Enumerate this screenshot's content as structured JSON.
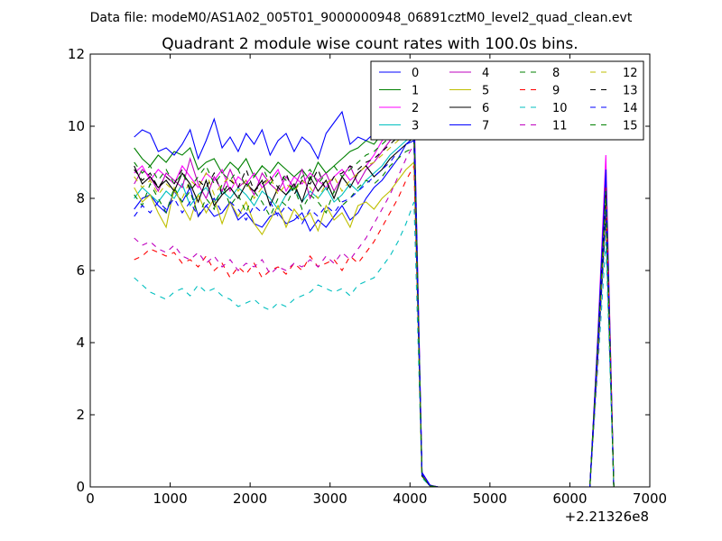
{
  "suptitle": "Data file: modeM0/AS1A02_005T01_9000000948_06891cztM0_level2_quad_clean.evt",
  "chart_data": {
    "type": "line",
    "title": "Quadrant 2 module wise count rates with 100.0s bins.",
    "xlabel": "",
    "ylabel": "",
    "xlim": [
      0,
      7000
    ],
    "ylim": [
      0,
      12
    ],
    "x_offset_label": "+2.21326e8",
    "x_ticks": [
      "0",
      "1000",
      "2000",
      "3000",
      "4000",
      "5000",
      "6000",
      "7000"
    ],
    "y_ticks": [
      "0",
      "2",
      "4",
      "6",
      "8",
      "10",
      "12"
    ],
    "grid": false,
    "legend_position": "top-right",
    "legend_columns": 4,
    "x": [
      550,
      650,
      750,
      850,
      950,
      1050,
      1150,
      1250,
      1350,
      1450,
      1550,
      1650,
      1750,
      1850,
      1950,
      2050,
      2150,
      2250,
      2350,
      2450,
      2550,
      2650,
      2750,
      2850,
      2950,
      3050,
      3150,
      3250,
      3350,
      3450,
      3550,
      3650,
      3750,
      3850,
      3950,
      4050,
      4150,
      4250,
      4350,
      4450,
      4550,
      4650,
      4750,
      4850,
      4950,
      5050,
      5150,
      5250,
      5350,
      5450,
      5550,
      5650,
      5750,
      5850,
      5950,
      6050,
      6150,
      6250,
      6350,
      6450,
      6550
    ],
    "series": [
      {
        "name": "0",
        "color": "#0000ff",
        "dash": "solid",
        "values": [
          7.7,
          8.0,
          8.1,
          7.8,
          7.6,
          8.2,
          7.9,
          8.3,
          7.5,
          7.8,
          7.5,
          7.6,
          7.9,
          7.4,
          7.6,
          7.3,
          7.2,
          7.5,
          7.6,
          7.3,
          7.4,
          7.6,
          7.1,
          7.4,
          7.2,
          7.5,
          7.8,
          7.4,
          7.6,
          8.0,
          8.3,
          8.5,
          8.8,
          9.1,
          9.5,
          9.6,
          0.4,
          0.05,
          0,
          0,
          0,
          0,
          0,
          0,
          0,
          0,
          0,
          0,
          0,
          0,
          0,
          0,
          0,
          0,
          0,
          0,
          0,
          0,
          3.8,
          8.4,
          0
        ]
      },
      {
        "name": "1",
        "color": "#008000",
        "dash": "solid",
        "values": [
          9.4,
          9.1,
          8.9,
          9.2,
          9.0,
          9.3,
          9.2,
          9.4,
          8.8,
          9.0,
          9.1,
          8.7,
          9.0,
          8.8,
          9.1,
          8.6,
          8.9,
          8.7,
          9.0,
          8.8,
          8.6,
          8.8,
          8.5,
          9.0,
          8.7,
          8.9,
          9.1,
          9.3,
          9.4,
          9.6,
          9.5,
          9.8,
          9.7,
          9.9,
          10.0,
          10.1,
          0.3,
          0.03,
          0,
          0,
          0,
          0,
          0,
          0,
          0,
          0,
          0,
          0,
          0,
          0,
          0,
          0,
          0,
          0,
          0,
          0,
          0,
          0,
          4.0,
          9.0,
          0
        ]
      },
      {
        "name": "2",
        "color": "#ff00ff",
        "dash": "solid",
        "values": [
          8.7,
          8.9,
          8.5,
          8.8,
          8.6,
          8.4,
          8.9,
          8.6,
          8.3,
          8.7,
          8.5,
          8.8,
          8.2,
          8.6,
          8.4,
          8.7,
          8.3,
          8.5,
          8.8,
          8.2,
          8.6,
          8.4,
          8.7,
          8.5,
          8.3,
          8.6,
          8.8,
          8.5,
          8.7,
          8.9,
          9.2,
          9.6,
          9.9,
          10.2,
          10.5,
          10.7,
          0.4,
          0.05,
          0,
          0,
          0,
          0,
          0,
          0,
          0,
          0,
          0,
          0,
          0,
          0,
          0,
          0,
          0,
          0,
          0,
          0,
          0,
          0,
          4.2,
          9.2,
          0
        ]
      },
      {
        "name": "3",
        "color": "#00bfbf",
        "dash": "solid",
        "values": [
          8.0,
          8.3,
          8.1,
          7.9,
          8.2,
          8.0,
          8.4,
          7.8,
          8.1,
          8.3,
          7.9,
          8.2,
          8.0,
          8.3,
          8.1,
          7.8,
          8.2,
          8.0,
          7.7,
          8.1,
          8.3,
          7.9,
          8.2,
          8.0,
          8.3,
          7.9,
          8.1,
          8.4,
          8.2,
          8.5,
          8.7,
          8.9,
          9.2,
          9.4,
          9.6,
          9.8,
          0.3,
          0.04,
          0,
          0,
          0,
          0,
          0,
          0,
          0,
          0,
          0,
          0,
          0,
          0,
          0,
          0,
          0,
          0,
          0,
          0,
          0,
          0,
          3.9,
          8.6,
          0
        ]
      },
      {
        "name": "4",
        "color": "#bf00bf",
        "dash": "solid",
        "values": [
          8.4,
          8.8,
          8.6,
          8.2,
          8.7,
          8.5,
          8.3,
          9.1,
          8.4,
          8.0,
          8.6,
          8.2,
          8.8,
          8.3,
          8.5,
          8.1,
          8.7,
          8.4,
          8.2,
          8.6,
          8.3,
          8.8,
          8.0,
          8.5,
          8.7,
          8.2,
          8.6,
          8.9,
          8.4,
          8.8,
          9.0,
          9.3,
          9.6,
          9.8,
          10.1,
          10.3,
          0.35,
          0.04,
          0,
          0,
          0,
          0,
          0,
          0,
          0,
          0,
          0,
          0,
          0,
          0,
          0,
          0,
          0,
          0,
          0,
          0,
          0,
          0,
          4.0,
          8.7,
          0
        ]
      },
      {
        "name": "5",
        "color": "#bfbf00",
        "dash": "solid",
        "values": [
          8.3,
          7.9,
          8.1,
          7.6,
          7.2,
          8.3,
          7.8,
          7.4,
          8.1,
          7.6,
          8.0,
          7.3,
          7.9,
          7.5,
          7.9,
          7.3,
          7.0,
          7.4,
          7.8,
          7.2,
          7.7,
          7.4,
          7.6,
          7.1,
          7.8,
          7.4,
          7.6,
          7.2,
          7.8,
          7.9,
          7.7,
          8.0,
          8.2,
          8.5,
          8.8,
          9.0,
          0.3,
          0.03,
          0,
          0,
          0,
          0,
          0,
          0,
          0,
          0,
          0,
          0,
          0,
          0,
          0,
          0,
          0,
          0,
          0,
          0,
          0,
          0,
          3.7,
          8.0,
          0
        ]
      },
      {
        "name": "6",
        "color": "#000000",
        "dash": "solid",
        "values": [
          8.9,
          8.4,
          8.6,
          8.3,
          8.5,
          8.2,
          8.7,
          8.4,
          7.9,
          8.5,
          7.8,
          8.1,
          8.3,
          8.0,
          8.4,
          8.2,
          8.5,
          7.8,
          8.3,
          8.1,
          8.4,
          7.9,
          8.6,
          8.2,
          8.5,
          8.0,
          8.6,
          8.3,
          8.7,
          8.9,
          8.6,
          8.8,
          9.1,
          9.3,
          9.5,
          9.7,
          0.3,
          0.03,
          0,
          0,
          0,
          0,
          0,
          0,
          0,
          0,
          0,
          0,
          0,
          0,
          0,
          0,
          0,
          0,
          0,
          0,
          0,
          0,
          3.8,
          7.6,
          0
        ]
      },
      {
        "name": "7",
        "color": "#0000ff",
        "dash": "solid",
        "values": [
          9.7,
          9.9,
          9.8,
          9.3,
          9.4,
          9.2,
          9.5,
          9.9,
          9.1,
          9.6,
          10.2,
          9.4,
          9.7,
          9.3,
          9.8,
          9.5,
          9.9,
          9.2,
          9.6,
          9.8,
          9.3,
          9.7,
          9.5,
          9.1,
          9.8,
          10.1,
          10.4,
          9.5,
          9.7,
          9.6,
          9.8,
          9.9,
          10.0,
          10.2,
          10.4,
          10.5,
          0.4,
          0.05,
          0,
          0,
          0,
          0,
          0,
          0,
          0,
          0,
          0,
          0,
          0,
          0,
          0,
          0,
          0,
          0,
          0,
          0,
          0,
          0,
          4.1,
          8.8,
          0
        ]
      },
      {
        "name": "8",
        "color": "#008000",
        "dash": "dashed",
        "values": [
          8.1,
          7.8,
          8.4,
          8.0,
          7.6,
          8.3,
          7.9,
          8.2,
          7.5,
          8.0,
          7.7,
          8.4,
          7.8,
          8.1,
          7.6,
          8.2,
          7.9,
          7.5,
          8.0,
          7.8,
          8.3,
          7.7,
          8.1,
          7.9,
          7.6,
          8.2,
          7.8,
          8.0,
          8.3,
          8.5,
          8.4,
          8.6,
          8.9,
          9.1,
          9.3,
          9.4,
          0.3,
          0.03,
          0,
          0,
          0,
          0,
          0,
          0,
          0,
          0,
          0,
          0,
          0,
          0,
          0,
          0,
          0,
          0,
          0,
          0,
          0,
          0,
          3.6,
          7.4,
          0
        ]
      },
      {
        "name": "9",
        "color": "#ff0000",
        "dash": "dashed",
        "values": [
          6.3,
          6.4,
          6.6,
          6.5,
          6.4,
          6.5,
          6.2,
          6.3,
          6.1,
          6.4,
          6.0,
          6.2,
          5.8,
          6.1,
          5.9,
          6.2,
          5.8,
          6.0,
          6.1,
          5.9,
          6.2,
          6.0,
          6.4,
          6.1,
          6.2,
          6.3,
          6.0,
          6.4,
          6.2,
          6.5,
          6.8,
          7.2,
          7.6,
          8.0,
          8.5,
          8.9,
          0.3,
          0.03,
          0,
          0,
          0,
          0,
          0,
          0,
          0,
          0,
          0,
          0,
          0,
          0,
          0,
          0,
          0,
          0,
          0,
          0,
          0,
          0,
          3.5,
          8.3,
          0
        ]
      },
      {
        "name": "10",
        "color": "#00bfbf",
        "dash": "dashed",
        "values": [
          5.8,
          5.6,
          5.4,
          5.3,
          5.2,
          5.4,
          5.5,
          5.3,
          5.6,
          5.4,
          5.5,
          5.3,
          5.2,
          5.0,
          5.1,
          5.2,
          5.0,
          4.9,
          5.1,
          5.0,
          5.2,
          5.3,
          5.4,
          5.6,
          5.5,
          5.4,
          5.5,
          5.3,
          5.6,
          5.7,
          5.8,
          6.1,
          6.4,
          6.8,
          7.3,
          7.9,
          0.25,
          0.03,
          0,
          0,
          0,
          0,
          0,
          0,
          0,
          0,
          0,
          0,
          0,
          0,
          0,
          0,
          0,
          0,
          0,
          0,
          0,
          0,
          3.3,
          6.8,
          0
        ]
      },
      {
        "name": "11",
        "color": "#bf00bf",
        "dash": "dashed",
        "values": [
          6.9,
          6.7,
          6.8,
          6.6,
          6.5,
          6.7,
          6.4,
          6.3,
          6.5,
          6.2,
          6.4,
          6.1,
          6.3,
          6.0,
          6.2,
          6.1,
          6.3,
          5.9,
          6.1,
          6.0,
          6.2,
          6.1,
          6.3,
          6.1,
          6.4,
          6.2,
          6.5,
          6.3,
          6.6,
          6.9,
          7.3,
          7.7,
          8.1,
          8.6,
          9.1,
          9.5,
          0.3,
          0.03,
          0,
          0,
          0,
          0,
          0,
          0,
          0,
          0,
          0,
          0,
          0,
          0,
          0,
          0,
          0,
          0,
          0,
          0,
          0,
          0,
          3.5,
          7.8,
          0
        ]
      },
      {
        "name": "12",
        "color": "#bfbf00",
        "dash": "dashed",
        "values": [
          8.6,
          8.3,
          8.5,
          8.1,
          8.4,
          8.2,
          8.0,
          8.5,
          8.3,
          8.7,
          8.1,
          8.4,
          8.6,
          8.2,
          8.5,
          8.0,
          8.3,
          8.6,
          8.1,
          8.4,
          8.2,
          8.5,
          8.3,
          8.0,
          8.4,
          8.6,
          8.2,
          8.5,
          8.7,
          8.9,
          9.0,
          9.2,
          9.4,
          9.6,
          9.8,
          10.0,
          0.3,
          0.03,
          0,
          0,
          0,
          0,
          0,
          0,
          0,
          0,
          0,
          0,
          0,
          0,
          0,
          0,
          0,
          0,
          0,
          0,
          0,
          0,
          3.8,
          7.9,
          0
        ]
      },
      {
        "name": "13",
        "color": "#000000",
        "dash": "dashed",
        "values": [
          8.8,
          8.5,
          8.7,
          8.3,
          8.6,
          8.4,
          8.8,
          8.2,
          8.5,
          8.3,
          8.7,
          8.1,
          8.5,
          8.3,
          8.8,
          8.2,
          8.4,
          8.6,
          8.3,
          8.7,
          8.1,
          8.5,
          8.4,
          8.8,
          8.2,
          8.6,
          8.7,
          8.9,
          8.8,
          9.0,
          9.1,
          9.3,
          9.5,
          9.7,
          9.9,
          10.1,
          0.3,
          0.03,
          0,
          0,
          0,
          0,
          0,
          0,
          0,
          0,
          0,
          0,
          0,
          0,
          0,
          0,
          0,
          0,
          0,
          0,
          0,
          0,
          3.9,
          8.1,
          0
        ]
      },
      {
        "name": "14",
        "color": "#0000ff",
        "dash": "dashed",
        "values": [
          7.5,
          7.8,
          7.6,
          7.9,
          7.7,
          8.0,
          7.6,
          7.9,
          7.5,
          7.8,
          8.0,
          7.6,
          7.9,
          7.7,
          7.4,
          7.8,
          7.6,
          7.9,
          7.5,
          7.8,
          7.6,
          7.3,
          7.7,
          7.5,
          7.8,
          7.6,
          7.9,
          8.0,
          8.2,
          8.4,
          8.6,
          8.8,
          9.0,
          9.3,
          9.5,
          9.7,
          0.35,
          0.04,
          0,
          0,
          0,
          0,
          0,
          0,
          0,
          0,
          0,
          0,
          0,
          0,
          0,
          0,
          0,
          0,
          0,
          0,
          0,
          0,
          3.7,
          7.7,
          0
        ]
      },
      {
        "name": "15",
        "color": "#008000",
        "dash": "dashed",
        "values": [
          9.0,
          8.7,
          8.9,
          8.5,
          8.8,
          8.4,
          8.7,
          8.3,
          8.6,
          8.9,
          8.4,
          8.7,
          8.5,
          8.8,
          8.3,
          8.6,
          8.9,
          8.4,
          8.7,
          8.5,
          8.2,
          8.6,
          8.8,
          8.4,
          8.7,
          8.9,
          8.6,
          8.8,
          9.0,
          9.2,
          9.3,
          9.5,
          9.7,
          9.9,
          10.0,
          10.2,
          0.3,
          0.03,
          0,
          0,
          0,
          0,
          0,
          0,
          0,
          0,
          0,
          0,
          0,
          0,
          0,
          0,
          0,
          0,
          0,
          0,
          0,
          0,
          3.9,
          8.2,
          0
        ]
      }
    ]
  }
}
